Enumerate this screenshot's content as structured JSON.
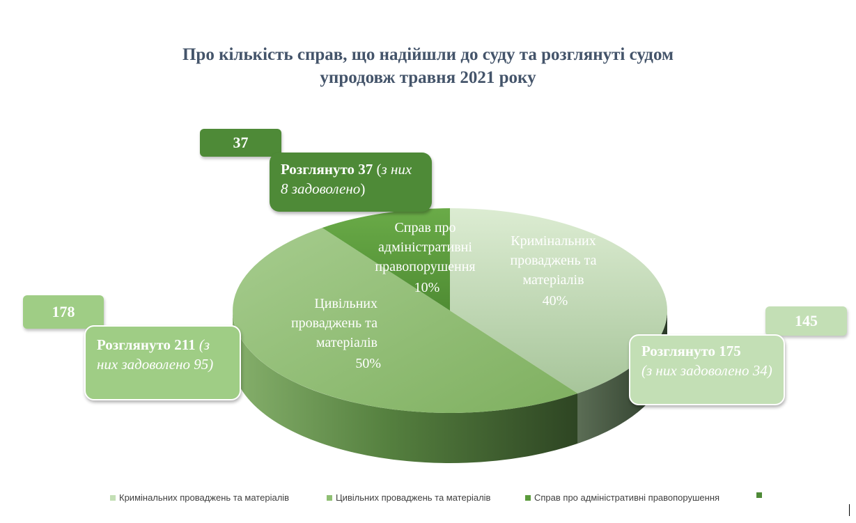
{
  "chart_data": {
    "type": "pie",
    "title": [
      "Про кількість справ, що надійшли до суду та розглянуті судом",
      "упродовж травня 2021 року"
    ],
    "slices": [
      {
        "name": "Кримінальних проваджень та матеріалів",
        "label_lines": [
          "Кримінальних",
          "проваджень та",
          "матеріалів"
        ],
        "percent_label": "40%",
        "value": 40,
        "color": "#c3dfb5",
        "count": "145",
        "callout_bold": "Розглянуто 175",
        "callout_italic": "(з них задоволено 34)"
      },
      {
        "name": "Цивільних проваджень та матеріалів",
        "label_lines": [
          "Цивільних",
          "проваджень та",
          "матеріалів"
        ],
        "percent_label": "50%",
        "value": 50,
        "color": "#8fbf73",
        "count": "178",
        "callout_bold": "Розглянуто 211",
        "callout_italic": "(з них задоволено 95)"
      },
      {
        "name": "Справ про адміністративні правопорушення",
        "label_lines": [
          "Справ про",
          "адміністративні",
          "правопорушення"
        ],
        "percent_label": "10%",
        "value": 10,
        "color": "#5b9b3c",
        "count": "37",
        "callout_bold": "Розглянуто 37",
        "callout_open": " (",
        "callout_italic": "з них 8 задоволено",
        "callout_close": ")"
      }
    ],
    "legend": {
      "placement": "bottom",
      "entries": [
        {
          "label": "Кримінальних проваджень та матеріалів",
          "color": "#c3dfb5"
        },
        {
          "label": "Цивільних проваджень та матеріалів",
          "color": "#8fbf73"
        },
        {
          "label": "Справ про адміністративні правопорушення",
          "color": "#5b9b3c"
        },
        {
          "label": "",
          "color": "#4e8a37"
        }
      ]
    }
  },
  "colors": {
    "title": "#44546a",
    "count_box_admin": "#4e8a37",
    "count_box_civil": "#9fcd85",
    "count_box_criminal": "#c3dfb5",
    "callout_admin": "#4e8a37",
    "callout_civil": "#9fcd85",
    "callout_criminal": "#c3dfb5"
  }
}
